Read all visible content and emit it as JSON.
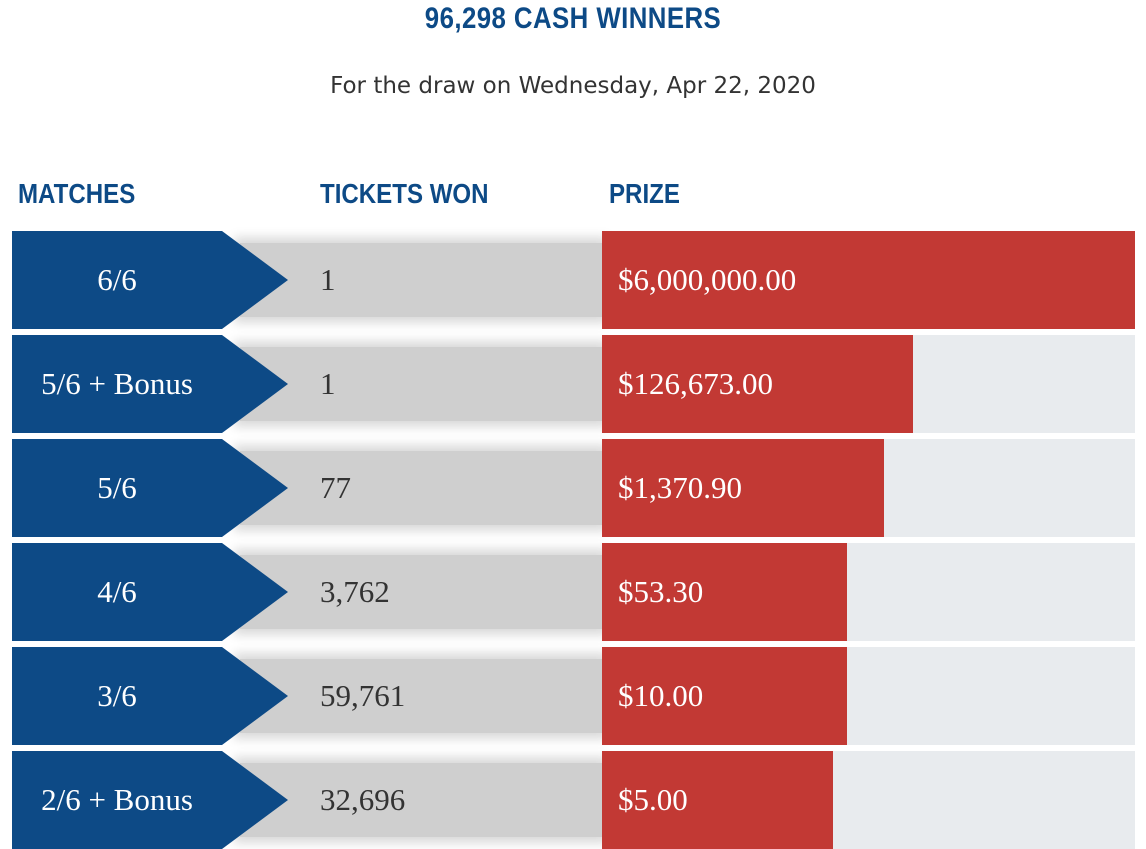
{
  "header": {
    "title": "96,298 CASH WINNERS",
    "subtitle": "For the draw on Wednesday, Apr 22, 2020"
  },
  "columns": {
    "matches": "MATCHES",
    "tickets": "TICKETS WON",
    "prize": "PRIZE"
  },
  "rows": [
    {
      "match": "6/6",
      "tickets": "1",
      "prize": "$6,000,000.00",
      "bar_fraction": 1.0
    },
    {
      "match": "5/6 + Bonus",
      "tickets": "1",
      "prize": "$126,673.00",
      "bar_fraction": 0.584
    },
    {
      "match": "5/6",
      "tickets": "77",
      "prize": "$1,370.90",
      "bar_fraction": 0.529
    },
    {
      "match": "4/6",
      "tickets": "3,762",
      "prize": "$53.30",
      "bar_fraction": 0.46
    },
    {
      "match": "3/6",
      "tickets": "59,761",
      "prize": "$10.00",
      "bar_fraction": 0.46
    },
    {
      "match": "2/6 + Bonus",
      "tickets": "32,696",
      "prize": "$5.00",
      "bar_fraction": 0.433
    }
  ],
  "colors": {
    "navy": "#0d4a86",
    "red": "#c23934",
    "track": "#e8ebee",
    "tickets_band": "#cfcfcf"
  }
}
